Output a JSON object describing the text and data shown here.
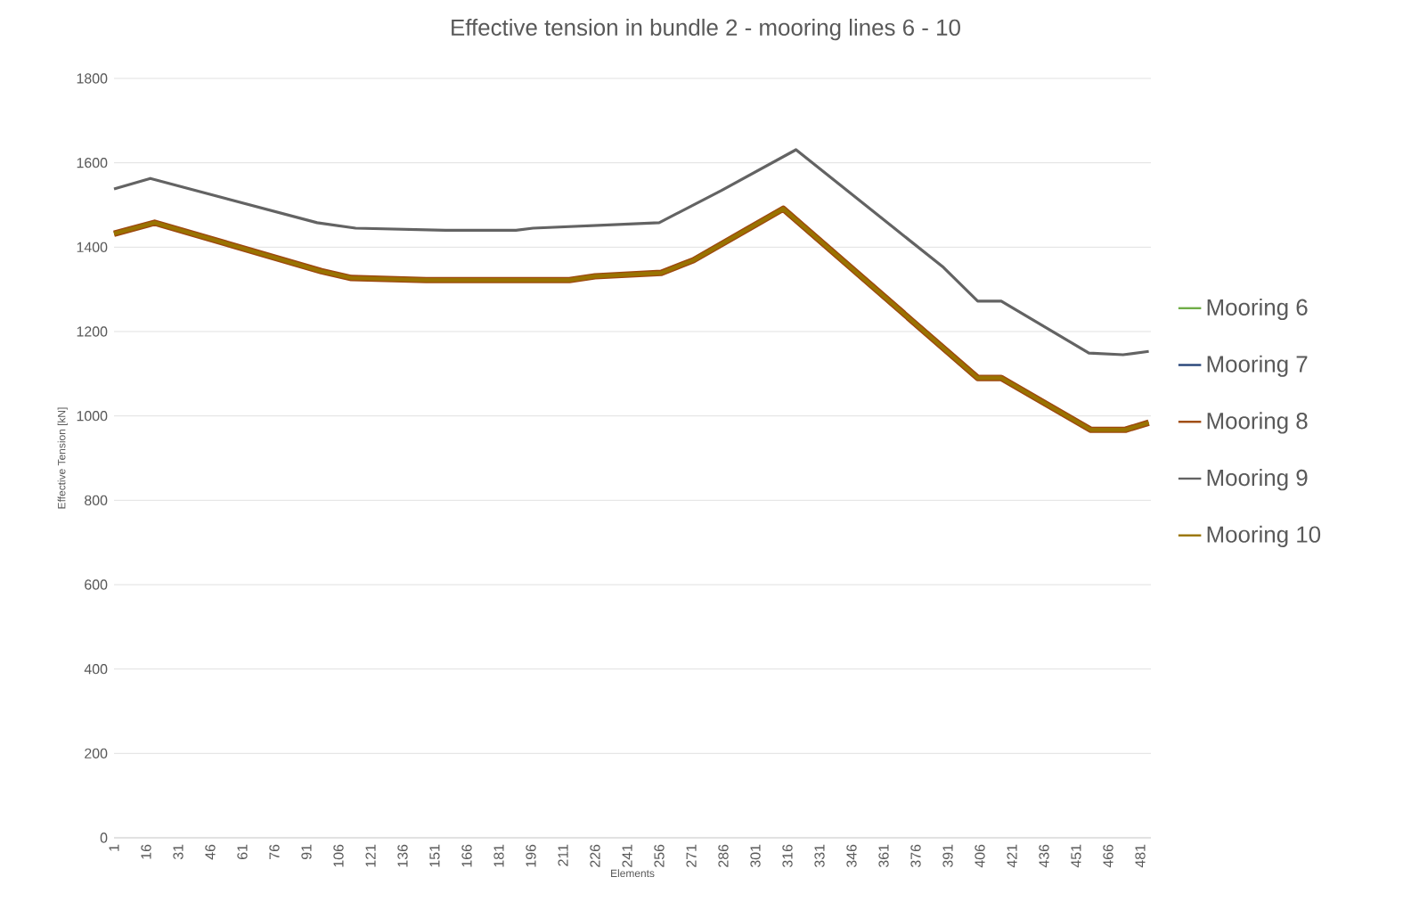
{
  "chart_data": {
    "type": "line",
    "title": "Effective tension in bundle 2 - mooring lines 6 - 10",
    "xlabel": "Elements",
    "ylabel": "Effective Tension [kN]",
    "xlim": [
      1,
      486
    ],
    "xticks": [
      1,
      16,
      31,
      46,
      61,
      76,
      91,
      106,
      121,
      136,
      151,
      166,
      181,
      196,
      211,
      226,
      241,
      256,
      271,
      286,
      301,
      316,
      331,
      346,
      361,
      376,
      391,
      406,
      421,
      436,
      451,
      466,
      481
    ],
    "ylim": [
      0,
      1800
    ],
    "yticks": [
      0,
      200,
      400,
      600,
      800,
      1000,
      1200,
      1400,
      1600,
      1800
    ],
    "grid": "y",
    "legend": "right",
    "marker": "none",
    "line_style": "solid",
    "series": [
      {
        "name": "Mooring 6",
        "color": "#70ad47"
      },
      {
        "name": "Mooring 7",
        "color": "#264478"
      },
      {
        "name": "Mooring 8",
        "color": "#9e480e",
        "x": [
          1,
          20,
          98,
          112,
          147,
          214,
          226,
          257,
          272,
          314,
          405,
          416,
          458,
          474,
          485
        ],
        "values": [
          1432,
          1458,
          1343,
          1327,
          1322,
          1322,
          1331,
          1339,
          1369,
          1491,
          1090,
          1090,
          967,
          967,
          984
        ]
      },
      {
        "name": "Mooring 9",
        "color": "#636363",
        "x": [
          1,
          18,
          96,
          114,
          156,
          189,
          197,
          256,
          264,
          285,
          320,
          389,
          405,
          416,
          457,
          473,
          485
        ],
        "values": [
          1538,
          1563,
          1458,
          1445,
          1440,
          1440,
          1445,
          1458,
          1479,
          1534,
          1631,
          1352,
          1272,
          1272,
          1149,
          1145,
          1153
        ]
      },
      {
        "name": "Mooring 10",
        "color": "#997300",
        "x": [
          1,
          20,
          98,
          112,
          147,
          214,
          226,
          257,
          272,
          314,
          405,
          416,
          458,
          474,
          485
        ],
        "values": [
          1432,
          1458,
          1343,
          1327,
          1322,
          1322,
          1331,
          1339,
          1369,
          1491,
          1090,
          1090,
          967,
          967,
          984
        ]
      }
    ]
  }
}
